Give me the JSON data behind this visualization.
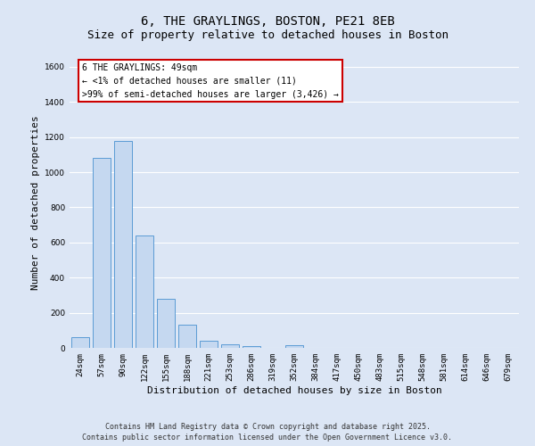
{
  "title_line1": "6, THE GRAYLINGS, BOSTON, PE21 8EB",
  "title_line2": "Size of property relative to detached houses in Boston",
  "xlabel": "Distribution of detached houses by size in Boston",
  "ylabel": "Number of detached properties",
  "categories": [
    "24sqm",
    "57sqm",
    "90sqm",
    "122sqm",
    "155sqm",
    "188sqm",
    "221sqm",
    "253sqm",
    "286sqm",
    "319sqm",
    "352sqm",
    "384sqm",
    "417sqm",
    "450sqm",
    "483sqm",
    "515sqm",
    "548sqm",
    "581sqm",
    "614sqm",
    "646sqm",
    "679sqm"
  ],
  "values": [
    60,
    1080,
    1180,
    640,
    280,
    130,
    40,
    20,
    10,
    0,
    15,
    0,
    0,
    0,
    0,
    0,
    0,
    0,
    0,
    0,
    0
  ],
  "bar_color": "#c5d8f0",
  "bar_edge_color": "#5b9bd5",
  "background_color": "#dce6f5",
  "grid_color": "#ffffff",
  "annotation_box_color": "#ffffff",
  "annotation_border_color": "#cc0000",
  "annotation_text": "6 THE GRAYLINGS: 49sqm\n← <1% of detached houses are smaller (11)\n>99% of semi-detached houses are larger (3,426) →",
  "ylim": [
    0,
    1650
  ],
  "yticks": [
    0,
    200,
    400,
    600,
    800,
    1000,
    1200,
    1400,
    1600
  ],
  "footer_line1": "Contains HM Land Registry data © Crown copyright and database right 2025.",
  "footer_line2": "Contains public sector information licensed under the Open Government Licence v3.0.",
  "title_fontsize": 10,
  "subtitle_fontsize": 9,
  "tick_fontsize": 6.5,
  "label_fontsize": 8,
  "annotation_fontsize": 7,
  "footer_fontsize": 6
}
